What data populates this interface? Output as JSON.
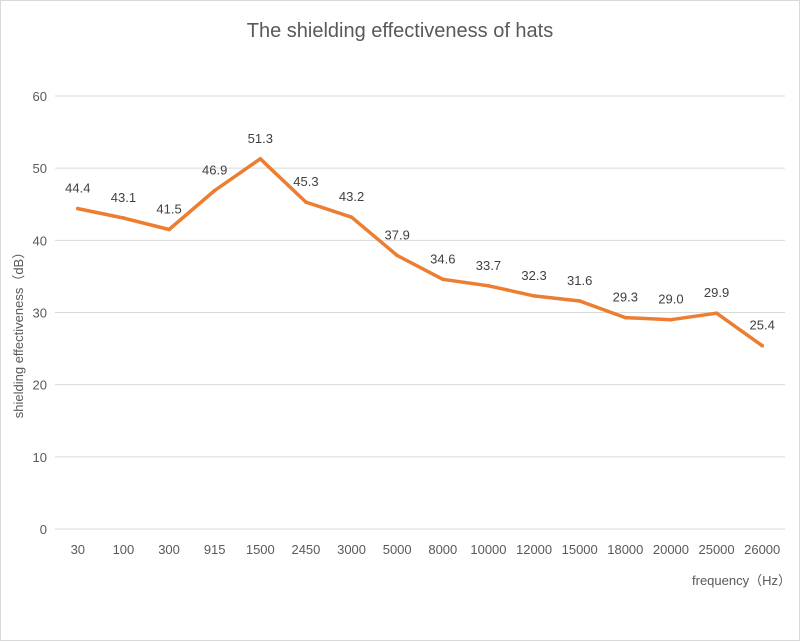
{
  "chart_data": {
    "type": "line",
    "title": "The shielding effectiveness of hats",
    "xlabel": "frequency（Hz）",
    "ylabel": "shielding effectiveness（dB）",
    "categories": [
      "30",
      "100",
      "300",
      "915",
      "1500",
      "2450",
      "3000",
      "5000",
      "8000",
      "10000",
      "12000",
      "15000",
      "18000",
      "20000",
      "25000",
      "26000"
    ],
    "series": [
      {
        "values": [
          44.4,
          43.1,
          41.5,
          46.9,
          51.3,
          45.3,
          43.2,
          37.9,
          34.6,
          33.7,
          32.3,
          31.6,
          29.3,
          29.0,
          29.9,
          25.4
        ],
        "labels": [
          "44.4",
          "43.1",
          "41.5",
          "46.9",
          "51.3",
          "45.3",
          "43.2",
          "37.9",
          "34.6",
          "33.7",
          "32.3",
          "31.6",
          "29.3",
          "29.0",
          "29.9",
          "25.4"
        ]
      }
    ],
    "ylim": [
      0,
      60
    ],
    "yticks": [
      "0",
      "10",
      "20",
      "30",
      "40",
      "50",
      "60"
    ],
    "grid": true,
    "legend": "none",
    "line_color": "#ED7D31"
  }
}
